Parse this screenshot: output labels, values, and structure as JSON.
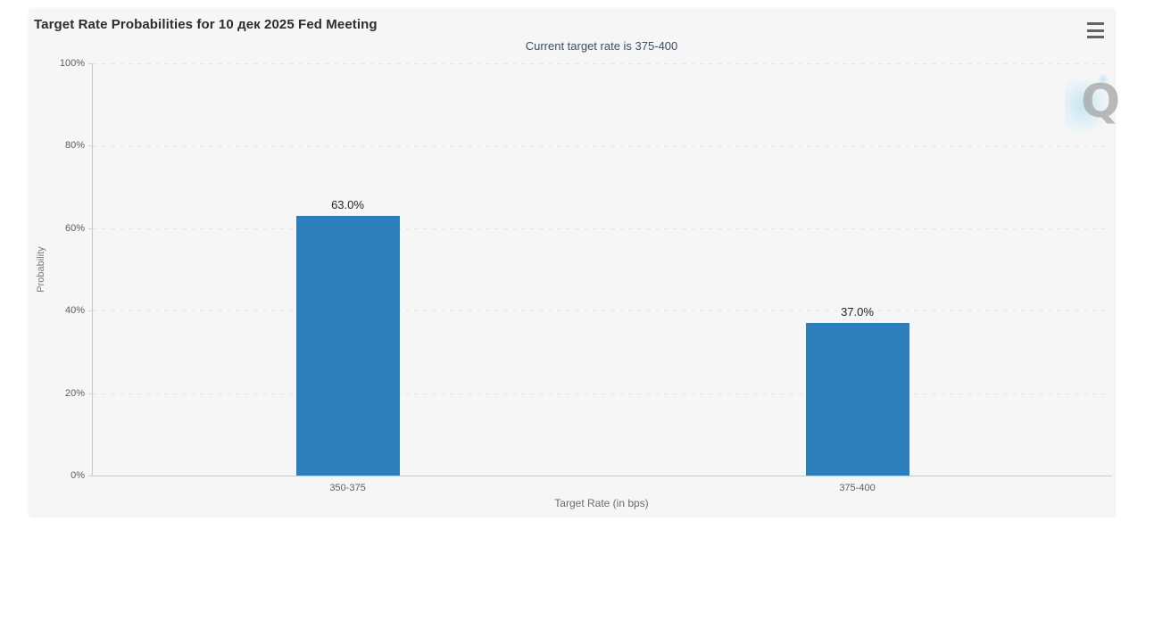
{
  "header": {
    "title": "Target Rate Probabilities for 10 дек 2025 Fed Meeting",
    "subtitle": "Current target rate is 375-400",
    "menu_icon": "hamburger-icon"
  },
  "watermark": {
    "letter": "Q",
    "icon": "quikstrike-q-watermark"
  },
  "colors": {
    "bar": "#2c7fba",
    "card_background": "#f6f6f6",
    "subtitle_text": "#3d4d66",
    "axis_line": "#c9c9c9",
    "gridline": "#e7e7e7"
  },
  "chart_data": {
    "type": "bar",
    "title": "Target Rate Probabilities for 10 дек 2025 Fed Meeting",
    "subtitle": "Current target rate is 375-400",
    "categories": [
      "350-375",
      "375-400"
    ],
    "values": [
      63.0,
      37.0
    ],
    "value_labels": [
      "63.0%",
      "37.0%"
    ],
    "xlabel": "Target Rate (in bps)",
    "ylabel": "Probability",
    "ylim": [
      0,
      100
    ],
    "ytick_values": [
      0,
      20,
      40,
      60,
      80,
      100
    ],
    "ytick_labels": [
      "0%",
      "20%",
      "40%",
      "60%",
      "80%",
      "100%"
    ],
    "grid": true,
    "gridline_style": "dashed",
    "legend": "none",
    "bar_color": "#2c7fba"
  }
}
